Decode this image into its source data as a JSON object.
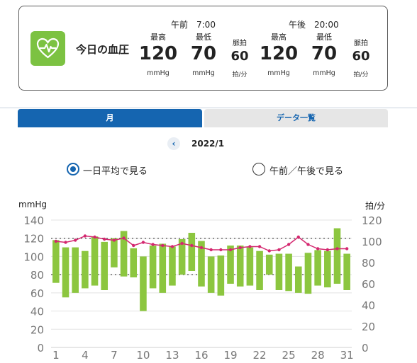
{
  "summary": {
    "title": "今日の血圧",
    "readings": [
      {
        "time": "午前　7:00",
        "systolic_label": "最高",
        "systolic": "120",
        "systolic_unit": "mmHg",
        "diastolic_label": "最低",
        "diastolic": "70",
        "diastolic_unit": "mmHg",
        "pulse_label": "脈拍",
        "pulse": "60",
        "pulse_unit": "拍/分"
      },
      {
        "time": "午後　20:00",
        "systolic_label": "最高",
        "systolic": "120",
        "systolic_unit": "mmHg",
        "diastolic_label": "最低",
        "diastolic": "70",
        "diastolic_unit": "mmHg",
        "pulse_label": "脈拍",
        "pulse": "60",
        "pulse_unit": "拍/分"
      }
    ]
  },
  "tabs": {
    "month": "月",
    "list": "データ一覧"
  },
  "month_nav": {
    "prev_icon": "chevron-left-icon",
    "label": "2022/1"
  },
  "view_mode": {
    "daily_average": "一日平均で見る",
    "am_pm": "午前／午後で見る",
    "selected": "daily_average"
  },
  "colors": {
    "accent": "#1565b0",
    "bar": "#8cc63f",
    "pulse_line": "#d4276f",
    "icon_bg": "#7cc242"
  },
  "chart_data": {
    "type": "bar",
    "left_axis_label": "mmHg",
    "right_axis_label": "拍/分",
    "x": [
      1,
      2,
      3,
      4,
      5,
      6,
      7,
      8,
      9,
      10,
      11,
      12,
      13,
      14,
      15,
      16,
      17,
      18,
      19,
      20,
      21,
      22,
      23,
      24,
      25,
      26,
      27,
      28,
      29,
      30,
      31
    ],
    "x_ticks": [
      "1",
      "4",
      "7",
      "10",
      "13",
      "16",
      "19",
      "22",
      "25",
      "28",
      "31"
    ],
    "ylim": [
      0,
      140
    ],
    "y_ticks": [
      "0",
      "20",
      "40",
      "60",
      "80",
      "100",
      "120",
      "140"
    ],
    "y2lim": [
      0,
      120
    ],
    "y2_ticks": [
      "0",
      "20",
      "40",
      "60",
      "80",
      "100",
      "120"
    ],
    "reference_lines": [
      120,
      80
    ],
    "series": [
      {
        "type": "range-bar",
        "high": [
          118,
          110,
          110,
          106,
          122,
          116,
          120,
          128,
          109,
          100,
          112,
          114,
          111,
          119,
          126,
          117,
          100,
          101,
          112,
          112,
          110,
          106,
          102,
          103,
          103,
          89,
          104,
          107,
          106,
          131,
          103
        ],
        "low": [
          71,
          55,
          60,
          65,
          68,
          63,
          88,
          78,
          77,
          40,
          65,
          60,
          68,
          80,
          84,
          67,
          60,
          57,
          70,
          67,
          68,
          63,
          80,
          63,
          62,
          60,
          59,
          68,
          66,
          70,
          63
        ]
      },
      {
        "type": "line",
        "axis": "right",
        "values": [
          100,
          99,
          101,
          105,
          104,
          102,
          101,
          103,
          96,
          99,
          97,
          96,
          95,
          98,
          96,
          94,
          92,
          92,
          92,
          94,
          95,
          95,
          91,
          92,
          97,
          104,
          97,
          93,
          92,
          93,
          93
        ]
      }
    ]
  }
}
